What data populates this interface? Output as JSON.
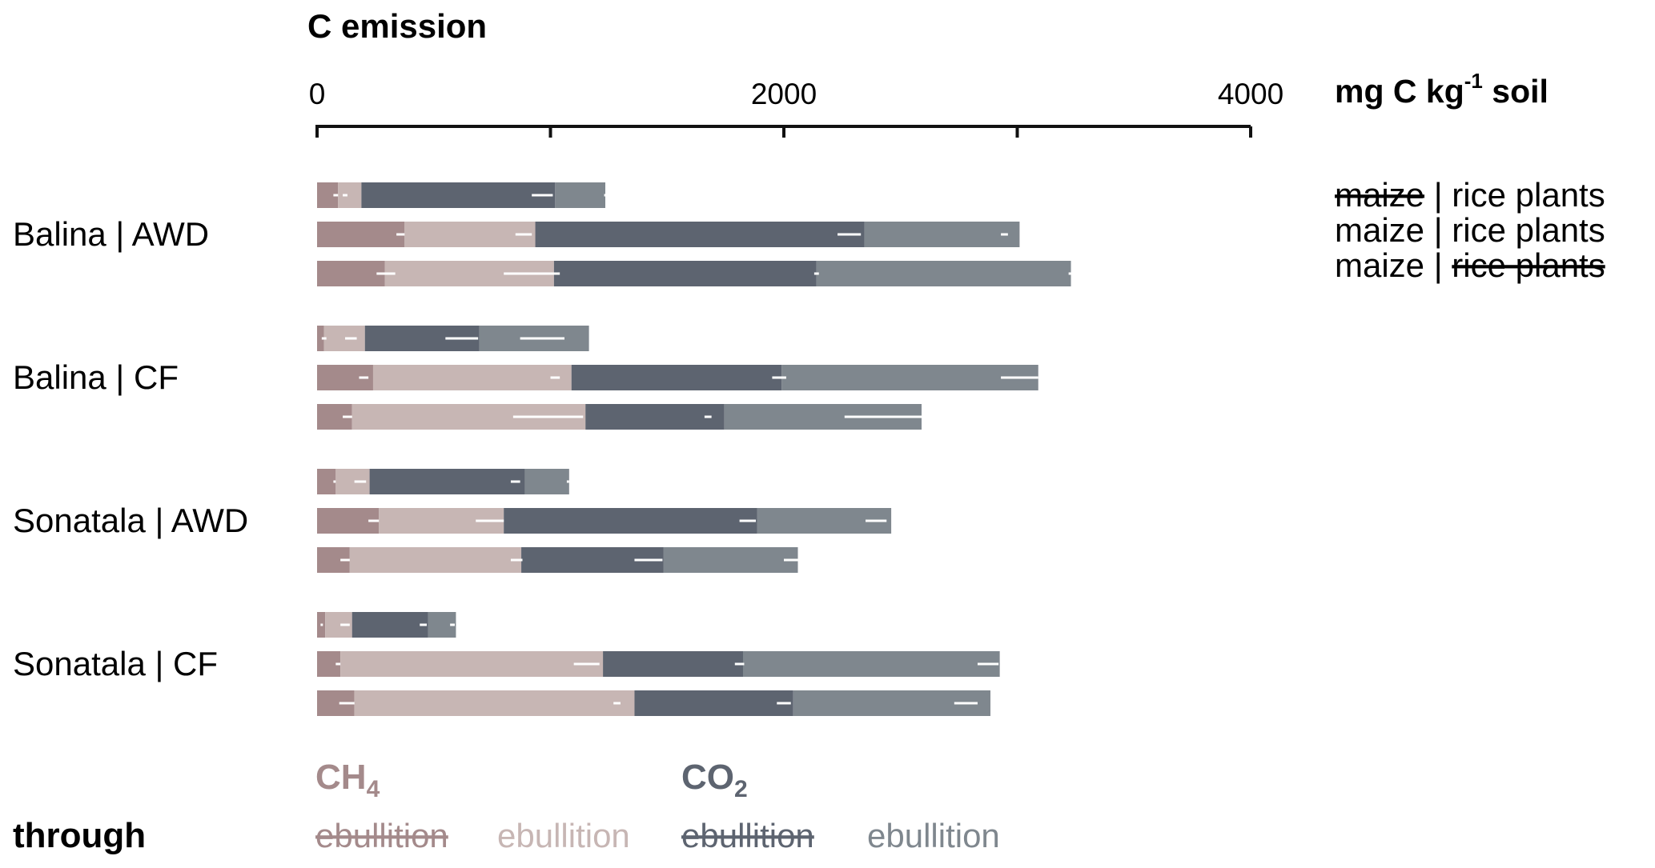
{
  "chart_data": {
    "type": "bar",
    "orientation": "horizontal",
    "stacked": true,
    "title": "C emission",
    "unit": {
      "prefix": "mg C kg",
      "sup": "-1",
      "suffix": " soil"
    },
    "xlim": [
      0,
      4000
    ],
    "xticks": [
      0,
      2000,
      4000
    ],
    "xtick_labels": [
      "0",
      "2000",
      "4000"
    ],
    "minor_ticks": [
      1000,
      3000
    ],
    "grid": false,
    "colors": {
      "ch4_struck": "#a48a8b",
      "ch4_plain": "#c7b6b4",
      "co2_struck": "#5d6470",
      "co2_plain": "#7f878e",
      "error_bar": "#ffffff"
    },
    "groups": [
      {
        "label": "Balina | AWD",
        "rows": [
          {
            "segments": [
              90,
              100,
              830,
              215
            ],
            "errors": [
              [
                70,
                90
              ],
              [
                110,
                130
              ],
              [
                920,
                1010
              ],
              [
                1230,
                1240
              ]
            ]
          },
          {
            "segments": [
              375,
              560,
              1410,
              665
            ],
            "errors": [
              [
                340,
                375
              ],
              [
                850,
                920
              ],
              [
                2230,
                2330
              ],
              [
                2930,
                2960
              ]
            ]
          },
          {
            "segments": [
              290,
              725,
              1125,
              1090
            ],
            "errors": [
              [
                255,
                335
              ],
              [
                800,
                1040
              ],
              [
                2130,
                2150
              ],
              [
                3220,
                3235
              ]
            ]
          }
        ]
      },
      {
        "label": "Balina | CF",
        "rows": [
          {
            "segments": [
              30,
              175,
              490,
              470
            ],
            "errors": [
              [
                20,
                40
              ],
              [
                120,
                170
              ],
              [
                550,
                690
              ],
              [
                870,
                1060
              ]
            ]
          },
          {
            "segments": [
              240,
              850,
              900,
              1100
            ],
            "errors": [
              [
                180,
                220
              ],
              [
                1000,
                1040
              ],
              [
                1950,
                2010
              ],
              [
                2930,
                3090
              ]
            ]
          },
          {
            "segments": [
              150,
              1000,
              595,
              845
            ],
            "errors": [
              [
                110,
                150
              ],
              [
                840,
                1140
              ],
              [
                1660,
                1690
              ],
              [
                2260,
                2600
              ]
            ]
          }
        ]
      },
      {
        "label": "Sonatala | AWD",
        "rows": [
          {
            "segments": [
              80,
              145,
              665,
              190
            ],
            "errors": [
              [
                70,
                80
              ],
              [
                160,
                210
              ],
              [
                830,
                870
              ],
              [
                1070,
                1080
              ]
            ]
          },
          {
            "segments": [
              265,
              535,
              1085,
              575
            ],
            "errors": [
              [
                220,
                265
              ],
              [
                680,
                800
              ],
              [
                1810,
                1880
              ],
              [
                2350,
                2440
              ]
            ]
          },
          {
            "segments": [
              140,
              735,
              610,
              575
            ],
            "errors": [
              [
                100,
                140
              ],
              [
                830,
                880
              ],
              [
                1360,
                1480
              ],
              [
                2000,
                2060
              ]
            ]
          }
        ]
      },
      {
        "label": "Sonatala | CF",
        "rows": [
          {
            "segments": [
              35,
              115,
              325,
              120
            ],
            "errors": [
              [
                15,
                25
              ],
              [
                100,
                140
              ],
              [
                440,
                470
              ],
              [
                570,
                590
              ]
            ]
          },
          {
            "segments": [
              100,
              1125,
              600,
              1100
            ],
            "errors": [
              [
                80,
                100
              ],
              [
                1100,
                1210
              ],
              [
                1790,
                1830
              ],
              [
                2830,
                2920
              ]
            ]
          },
          {
            "segments": [
              160,
              1200,
              680,
              845
            ],
            "errors": [
              [
                95,
                160
              ],
              [
                1270,
                1300
              ],
              [
                1970,
                2030
              ],
              [
                2730,
                2830
              ]
            ]
          }
        ]
      }
    ]
  },
  "legend": {
    "rows": [
      {
        "left": "maize",
        "sep": " | ",
        "right": "rice plants",
        "left_struck": true,
        "right_struck": false
      },
      {
        "left": "maize",
        "sep": " | ",
        "right": "rice plants",
        "left_struck": false,
        "right_struck": false
      },
      {
        "left": "maize",
        "sep": " | ",
        "right": "rice plants",
        "left_struck": false,
        "right_struck": true
      }
    ],
    "ch4_label": {
      "main": "CH",
      "sub": "4"
    },
    "co2_label": {
      "main": "CO",
      "sub": "2"
    },
    "through": "through",
    "ebullition_items": [
      {
        "text": "ebullition",
        "struck": true,
        "color_key": "ch4_struck"
      },
      {
        "text": "ebullition",
        "struck": false,
        "color_key": "ch4_plain"
      },
      {
        "text": "ebullition",
        "struck": true,
        "color_key": "co2_struck"
      },
      {
        "text": "ebullition",
        "struck": false,
        "color_key": "co2_plain"
      }
    ]
  }
}
